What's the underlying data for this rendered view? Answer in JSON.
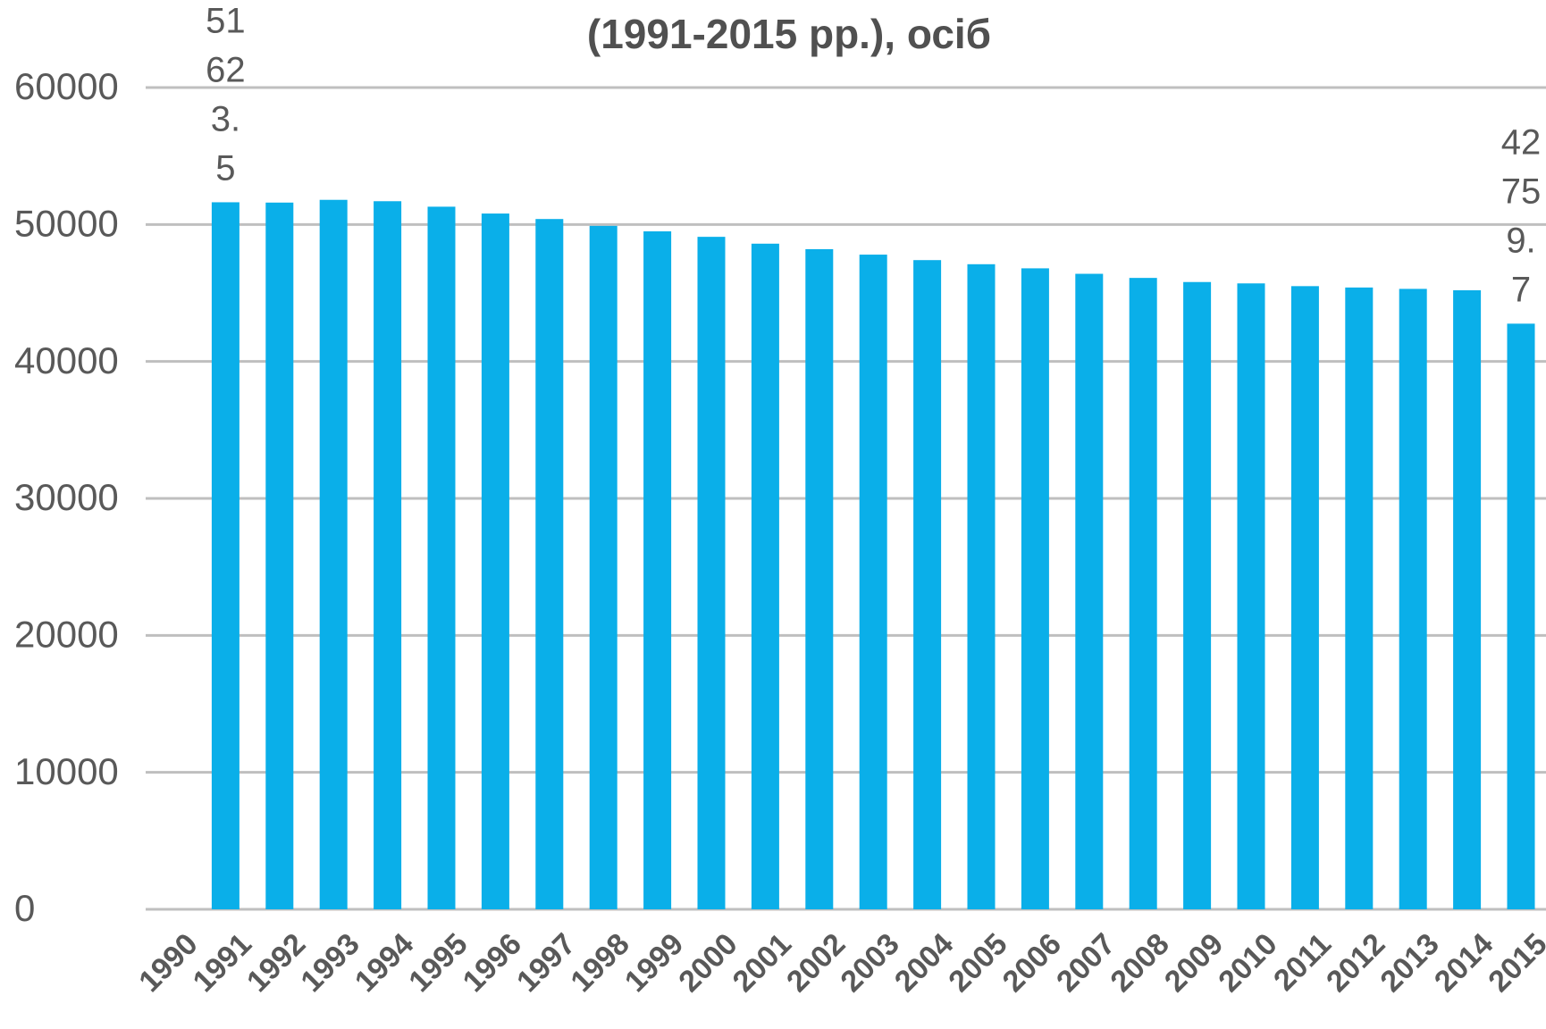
{
  "chart_data": {
    "type": "bar",
    "title": "(1991-2015 рр.), осіб",
    "categories": [
      "1990",
      "1991",
      "1992",
      "1993",
      "1994",
      "1995",
      "1996",
      "1997",
      "1998",
      "1999",
      "2000",
      "2001",
      "2002",
      "2003",
      "2004",
      "2005",
      "2006",
      "2007",
      "2008",
      "2009",
      "2010",
      "2011",
      "2012",
      "2013",
      "2014",
      "2015"
    ],
    "values": [
      null,
      51623.5,
      51600,
      51800,
      51700,
      51300,
      50800,
      50400,
      49900,
      49500,
      49100,
      48600,
      48200,
      47800,
      47400,
      47100,
      46800,
      46400,
      46100,
      45800,
      45700,
      45500,
      45400,
      45300,
      45200,
      42759.7
    ],
    "value_labels": [
      null,
      "51623.5",
      null,
      null,
      null,
      null,
      null,
      null,
      null,
      null,
      null,
      null,
      null,
      null,
      null,
      null,
      null,
      null,
      null,
      null,
      null,
      null,
      null,
      null,
      null,
      "42759.7"
    ],
    "color": "#0aafe9",
    "ylim": [
      0,
      60000
    ],
    "yticks": [
      0,
      10000,
      20000,
      30000,
      40000,
      50000,
      60000
    ],
    "grid": true
  }
}
